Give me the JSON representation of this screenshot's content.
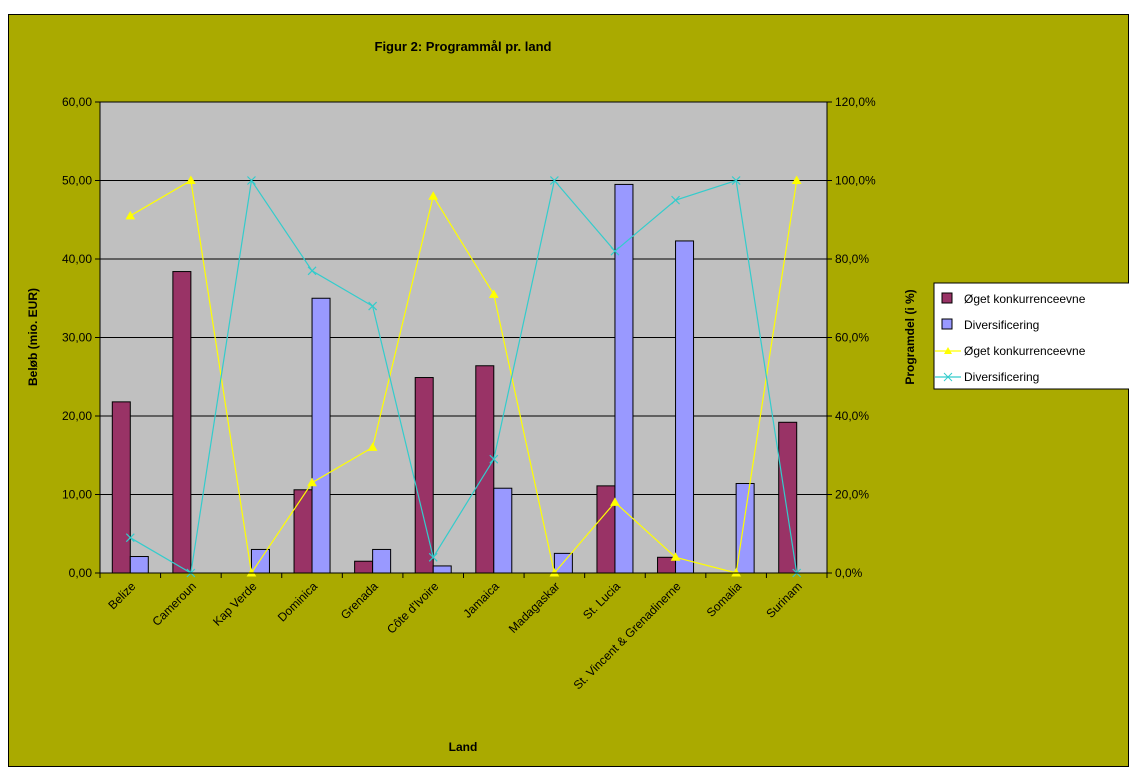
{
  "chart_data": {
    "type": "bar",
    "title": "Figur 2: Programmål pr. land",
    "xlabel": "Land",
    "ylabel": "Beløb (mio. EUR)",
    "y2label": "Programdel (i %)",
    "categories": [
      "Belize",
      "Cameroun",
      "Kap Verde",
      "Dominica",
      "Grenada",
      "Côte d'Ivoire",
      "Jamaica",
      "Madagaskar",
      "St. Lucia",
      "St. Vincent & Grenadinerne",
      "Somalia",
      "Surinam"
    ],
    "ylim": [
      0,
      60
    ],
    "y_ticks": [
      "0,00",
      "10,00",
      "20,00",
      "30,00",
      "40,00",
      "50,00",
      "60,00"
    ],
    "y2lim": [
      0,
      120
    ],
    "y2_ticks": [
      "0,0%",
      "20,0%",
      "40,0%",
      "60,0%",
      "80,0%",
      "100,0%",
      "120,0%"
    ],
    "series": [
      {
        "name": "Øget konkurrenceevne",
        "kind": "bar",
        "color": "#993366",
        "values": [
          21.8,
          38.4,
          0,
          10.6,
          1.5,
          24.9,
          26.4,
          0,
          11.1,
          2.0,
          0,
          19.2
        ]
      },
      {
        "name": "Diversificering",
        "kind": "bar",
        "color": "#9999ff",
        "values": [
          2.1,
          0,
          3.0,
          35.0,
          3.0,
          0.9,
          10.8,
          2.5,
          49.5,
          42.3,
          11.4,
          0
        ]
      },
      {
        "name": "Øget konkurrenceevne",
        "kind": "line",
        "axis": "y2",
        "color": "#ffff00",
        "marker": "triangle",
        "values": [
          91,
          100,
          0,
          23,
          32,
          96,
          71,
          0,
          18,
          4,
          0,
          100
        ]
      },
      {
        "name": "Diversificering",
        "kind": "line",
        "axis": "y2",
        "color": "#33cccc",
        "marker": "x",
        "values": [
          9,
          0,
          100,
          77,
          68,
          4,
          29,
          100,
          82,
          95,
          100,
          0
        ]
      }
    ],
    "legend_position": "right",
    "plot_background": "#c0c0c0",
    "chart_background": "#aaaa00"
  }
}
